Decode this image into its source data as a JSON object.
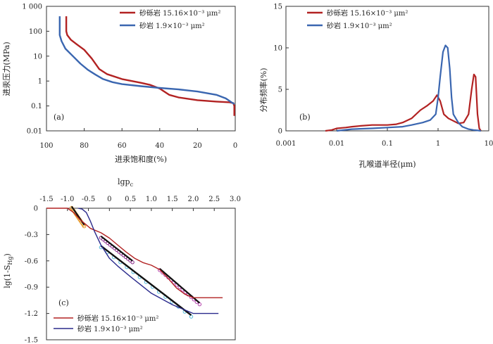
{
  "chart_data": [
    {
      "id": "a",
      "type": "line",
      "panel_label": "(a)",
      "xlabel": "进汞饱和度(%)",
      "ylabel": "进汞压力(MPa)",
      "x_ticks": [
        "100",
        "80",
        "60",
        "40",
        "20",
        "0"
      ],
      "y_ticks": [
        "0.01",
        "0.1",
        "1",
        "10",
        "100",
        "1 000"
      ],
      "xlim": [
        100,
        0
      ],
      "ylim": [
        0.01,
        1000
      ],
      "y_scale": "log",
      "legend_position": "top-right",
      "colors": {
        "red": "#b22222",
        "blue": "#3a66b0"
      },
      "series": [
        {
          "name": "砂砾岩 15.16×10⁻³ μm²",
          "color": "#b22222",
          "x": [
            89.5,
            89.5,
            89,
            87,
            84,
            80,
            76,
            72,
            68,
            60,
            50,
            45,
            40,
            35,
            30,
            20,
            10,
            3,
            1,
            0.5,
            0.5
          ],
          "y": [
            400,
            100,
            70,
            45,
            30,
            18,
            8,
            3,
            1.9,
            1.2,
            0.85,
            0.7,
            0.5,
            0.28,
            0.22,
            0.17,
            0.15,
            0.14,
            0.13,
            0.1,
            0.04
          ]
        },
        {
          "name": "砂岩 1.9×10⁻³ μm²",
          "color": "#3a66b0",
          "x": [
            93,
            93,
            92,
            90,
            86,
            82,
            78,
            74,
            70,
            65,
            60,
            50,
            40,
            30,
            20,
            10,
            5,
            2,
            0.5
          ],
          "y": [
            400,
            70,
            40,
            20,
            10,
            5,
            2.8,
            1.8,
            1.2,
            0.9,
            0.75,
            0.62,
            0.53,
            0.46,
            0.38,
            0.28,
            0.2,
            0.14,
            0.12
          ]
        }
      ]
    },
    {
      "id": "b",
      "type": "line",
      "panel_label": "(b)",
      "xlabel": "孔喉道半径(μm)",
      "ylabel": "分布频率(%)",
      "x_ticks": [
        "0.001",
        "0.01",
        "0.1",
        "1",
        "10"
      ],
      "y_ticks": [
        "0",
        "5",
        "10",
        "15"
      ],
      "xlim": [
        0.001,
        10
      ],
      "ylim": [
        0,
        15
      ],
      "x_scale": "log",
      "legend_position": "top-left",
      "series": [
        {
          "name": "砂砾岩 15.16×10⁻³ μm²",
          "color": "#b22222",
          "x": [
            0.006,
            0.008,
            0.01,
            0.015,
            0.02,
            0.03,
            0.05,
            0.1,
            0.15,
            0.2,
            0.3,
            0.45,
            0.6,
            0.8,
            0.95,
            1.1,
            1.3,
            1.6,
            2,
            2.5,
            3.2,
            4,
            4.6,
            5.1,
            5.5,
            6,
            6.5,
            7
          ],
          "y": [
            0,
            0.1,
            0.3,
            0.4,
            0.5,
            0.6,
            0.7,
            0.7,
            0.8,
            1.0,
            1.5,
            2.5,
            3.0,
            3.6,
            4.3,
            3.6,
            2.0,
            1.5,
            1.2,
            0.9,
            1.0,
            2.0,
            5.0,
            6.8,
            6.5,
            2.0,
            0.3,
            0
          ]
        },
        {
          "name": "砂岩 1.9×10⁻³ μm²",
          "color": "#3a66b0",
          "x": [
            0.01,
            0.02,
            0.05,
            0.1,
            0.2,
            0.3,
            0.5,
            0.7,
            0.9,
            1.0,
            1.1,
            1.25,
            1.4,
            1.55,
            1.7,
            1.85,
            2.0,
            2.5,
            3,
            4,
            5,
            6,
            7
          ],
          "y": [
            0,
            0.2,
            0.3,
            0.4,
            0.5,
            0.7,
            1.0,
            1.3,
            2.0,
            4.0,
            6.5,
            9.5,
            10.3,
            10.0,
            7.5,
            4.0,
            2.0,
            1.0,
            0.5,
            0.2,
            0.1,
            0.05,
            0
          ]
        }
      ]
    },
    {
      "id": "c",
      "type": "line",
      "panel_label": "(c)",
      "xlabel": "lgp",
      "xlabel_sub": "c",
      "ylabel": "lg(1-S",
      "ylabel_sub": "Hg",
      "ylabel_tail": ")",
      "x_ticks": [
        "-1.5",
        "-1.0",
        "-0.5",
        "0",
        "0.5",
        "1.0",
        "1.5",
        "2.0",
        "2.5",
        "3.0"
      ],
      "y_ticks": [
        "0",
        "-0.3",
        "-0.6",
        "-0.9",
        "-1.2",
        "-1.5"
      ],
      "xlim": [
        -1.5,
        3.0
      ],
      "ylim": [
        -1.5,
        0
      ],
      "legend_position": "bottom-left",
      "series": [
        {
          "name": "砂砾岩 15.16×10⁻³ μm²",
          "color": "#b22222",
          "x": [
            -1.5,
            -1.0,
            -0.85,
            -0.7,
            -0.55,
            -0.45,
            -0.35,
            -0.2,
            0.0,
            0.2,
            0.4,
            0.6,
            0.8,
            1.0,
            1.2,
            1.4,
            1.6,
            1.8,
            2.0,
            2.7
          ],
          "y": [
            0,
            0,
            -0.05,
            -0.13,
            -0.19,
            -0.23,
            -0.25,
            -0.28,
            -0.34,
            -0.42,
            -0.5,
            -0.57,
            -0.62,
            -0.65,
            -0.7,
            -0.8,
            -0.91,
            -0.98,
            -1.02,
            -1.02
          ]
        },
        {
          "name": "砂岩 1.9×10⁻³ μm²",
          "color": "#2a2a8c",
          "x": [
            -0.75,
            -0.65,
            -0.55,
            -0.45,
            -0.35,
            -0.2,
            0.0,
            0.2,
            0.5,
            1.0,
            1.5,
            2.0,
            2.6
          ],
          "y": [
            0,
            -0.01,
            -0.05,
            -0.15,
            -0.27,
            -0.42,
            -0.57,
            -0.66,
            -0.78,
            -0.97,
            -1.1,
            -1.2,
            -1.2
          ]
        }
      ]
    }
  ]
}
